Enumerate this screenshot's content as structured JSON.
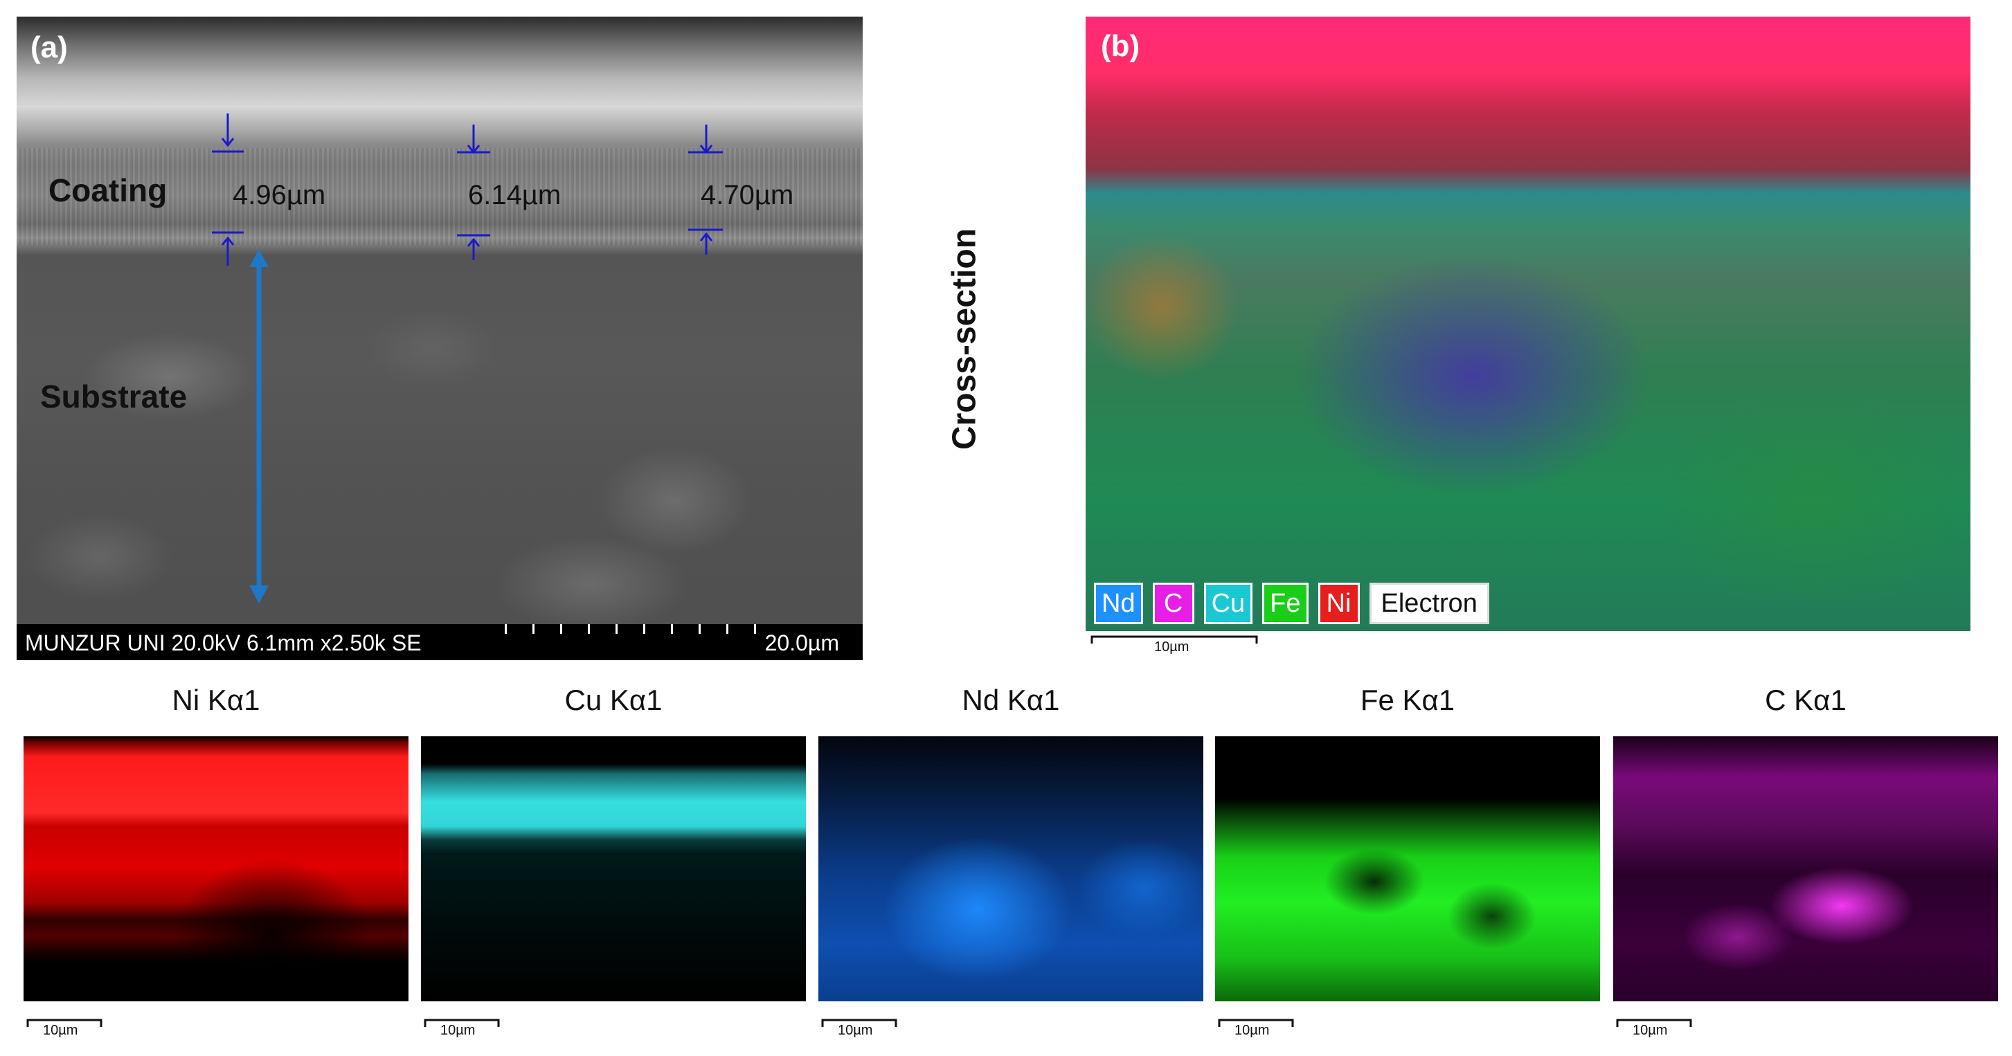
{
  "panel_a": {
    "label": "(a)",
    "coating_label": "Coating",
    "substrate_label": "Substrate",
    "thickness_measurements": [
      "4.96µm",
      "6.14µm",
      "4.70µm"
    ],
    "info_bar_text": "MUNZUR UNI 20.0kV 6.1mm x2.50k SE",
    "scale_bar_text": "20.0µm"
  },
  "panel_b": {
    "label": "(b)",
    "side_label": "Cross-section",
    "legend": [
      {
        "label": "Nd",
        "color": "#1e90ff"
      },
      {
        "label": "C",
        "color": "#e61ee6"
      },
      {
        "label": "Cu",
        "color": "#19c8d2"
      },
      {
        "label": "Fe",
        "color": "#19cd19"
      },
      {
        "label": "Ni",
        "color": "#e61e1e"
      },
      {
        "label": "Electron",
        "color": "#ffffff"
      }
    ],
    "scale_bar_text": "10µm"
  },
  "element_maps": [
    {
      "title": "Ni Kα1",
      "color": "#ff2020",
      "scale_bar_text": "10µm"
    },
    {
      "title": "Cu Kα1",
      "color": "#35e0e0",
      "scale_bar_text": "10µm"
    },
    {
      "title": "Nd Kα1",
      "color": "#1e8cff",
      "scale_bar_text": "10µm"
    },
    {
      "title": "Fe Kα1",
      "color": "#22ee22",
      "scale_bar_text": "10µm"
    },
    {
      "title": "C Kα1",
      "color": "#ff3cff",
      "scale_bar_text": "10µm"
    }
  ],
  "annotation_colors": {
    "thickness_markers": "#1a1acc",
    "depth_arrow": "#1f77c8"
  }
}
